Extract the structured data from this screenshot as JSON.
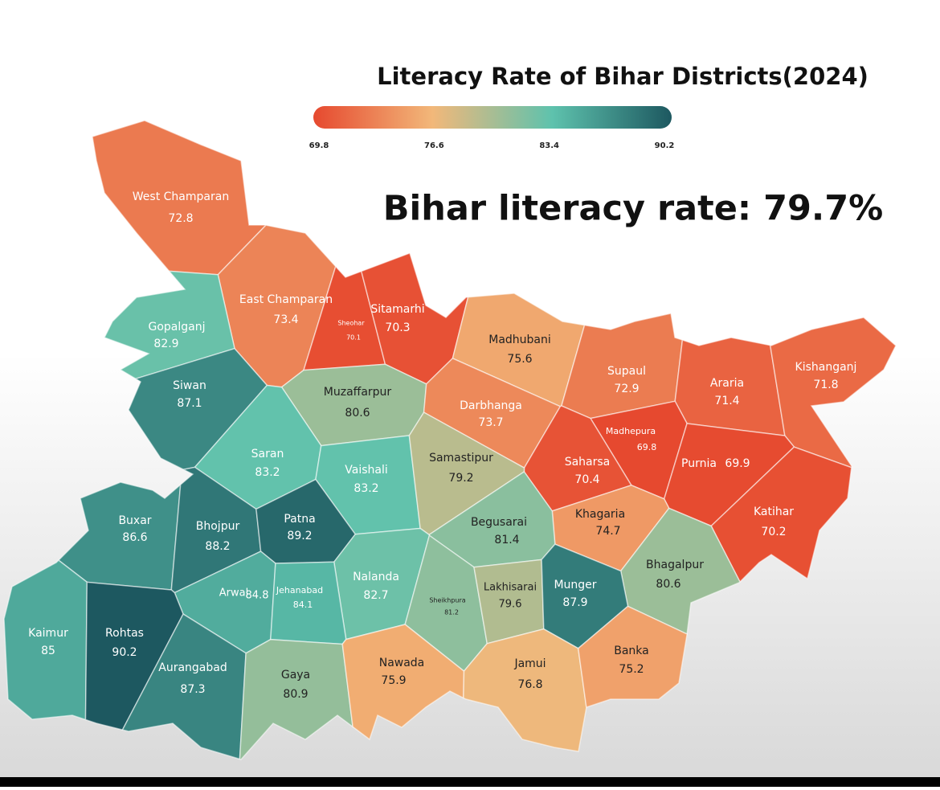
{
  "chart_data": {
    "type": "choropleth",
    "title": "Literacy Rate of Bihar Districts(2024)",
    "annotation": "Bihar literacy rate: 79.7%",
    "categories": [
      "West Champaran",
      "East Champaran",
      "Sheohar",
      "Sitamarhi",
      "Madhubani",
      "Supaul",
      "Araria",
      "Kishanganj",
      "Gopalganj",
      "Siwan",
      "Muzaffarpur",
      "Darbhanga",
      "Madhepura",
      "Saharsa",
      "Purnia",
      "Saran",
      "Vaishali",
      "Samastipur",
      "Katihar",
      "Khagaria",
      "Begusarai",
      "Buxar",
      "Bhojpur",
      "Patna",
      "Bhagalpur",
      "Nalanda",
      "Arwal",
      "Jehanabad",
      "Sheikhpura",
      "Lakhisarai",
      "Munger",
      "Kaimur",
      "Rohtas",
      "Aurangabad",
      "Gaya",
      "Nawada",
      "Jamui",
      "Banka"
    ],
    "values": [
      72.8,
      73.4,
      70.1,
      70.3,
      75.6,
      72.9,
      71.4,
      71.8,
      82.9,
      87.1,
      80.6,
      73.7,
      69.8,
      70.4,
      69.9,
      83.2,
      83.2,
      79.2,
      70.2,
      74.7,
      81.4,
      86.6,
      88.2,
      89.2,
      80.6,
      82.7,
      84.8,
      84.1,
      81.2,
      79.6,
      87.9,
      85,
      90.2,
      87.3,
      80.9,
      75.9,
      76.8,
      75.2
    ],
    "colorbar": {
      "ticks": [
        69.8,
        76.6,
        83.4,
        90.2
      ],
      "colors": [
        "#e6492f",
        "#f2b87a",
        "#5ec2ad",
        "#1d5860"
      ]
    }
  }
}
